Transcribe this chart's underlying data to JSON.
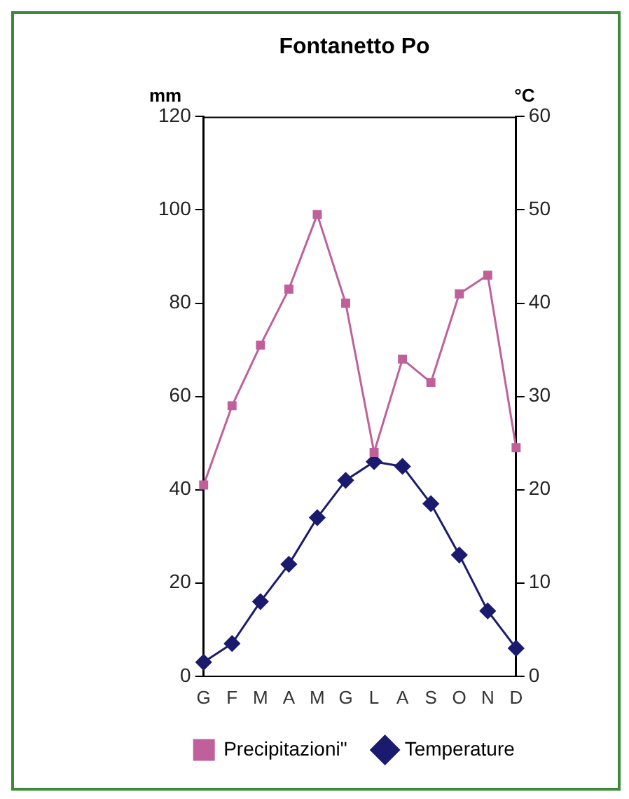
{
  "chart_data": {
    "type": "line",
    "title": "Fontanetto Po",
    "ylabel": "mm",
    "y2label": "°C",
    "categories": [
      "G",
      "F",
      "M",
      "A",
      "M",
      "G",
      "L",
      "A",
      "S",
      "O",
      "N",
      "D"
    ],
    "series": [
      {
        "name": "Precipitazioni\"",
        "color": "#c0609a",
        "marker": "square",
        "values": [
          41,
          58,
          71,
          83,
          99,
          80,
          48,
          68,
          63,
          82,
          86,
          49
        ]
      },
      {
        "name": "Temperature",
        "color": "#1a1a6e",
        "marker": "diamond",
        "axis": "y2",
        "values": [
          1.5,
          3.5,
          8,
          12,
          17,
          21,
          23,
          22.5,
          18.5,
          13,
          7,
          3
        ]
      }
    ],
    "ylim": [
      0,
      120
    ],
    "yticks": [
      0,
      20,
      40,
      60,
      80,
      100,
      120
    ],
    "y2lim": [
      0,
      60
    ],
    "y2ticks": [
      0,
      10,
      20,
      30,
      40,
      50,
      60
    ],
    "grid": false,
    "legend": "bottom"
  }
}
